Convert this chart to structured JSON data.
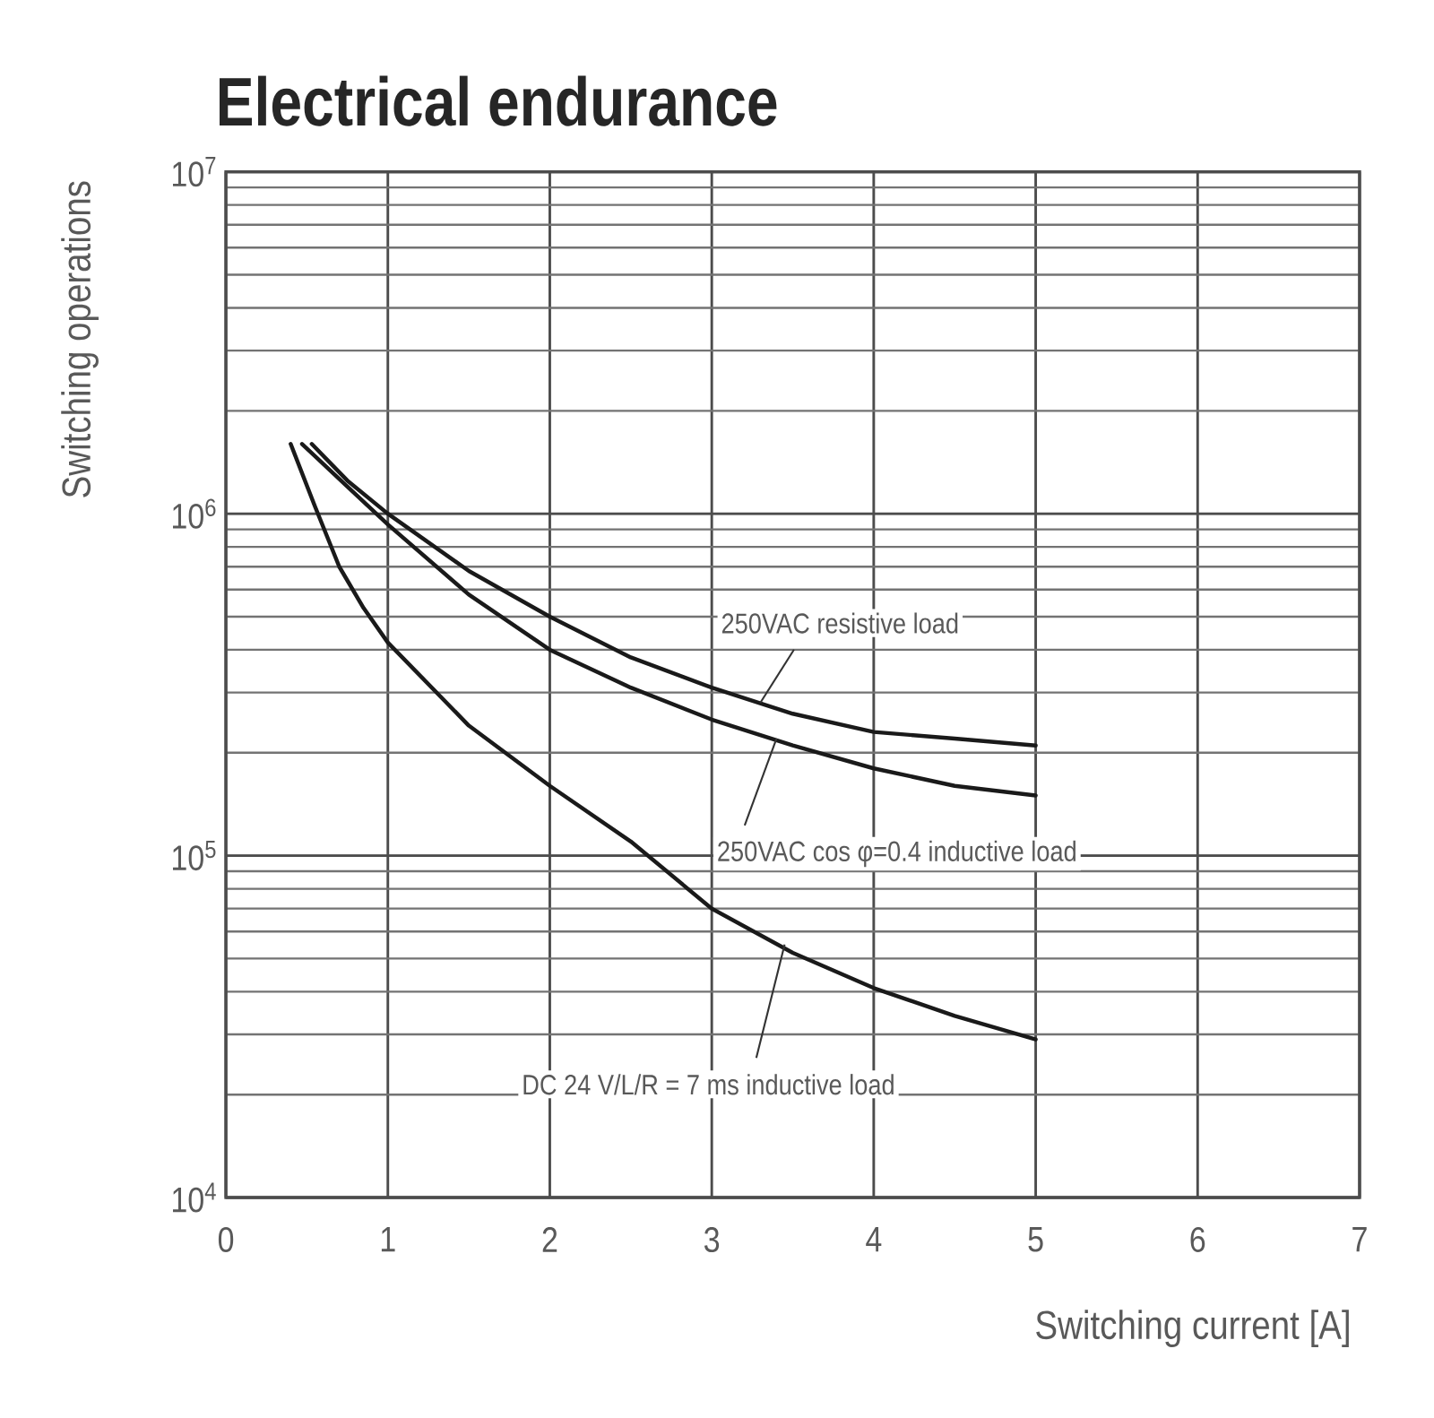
{
  "chart_data": {
    "type": "line",
    "title": "Electrical endurance",
    "xlabel": "Switching current [A]",
    "ylabel": "Switching operations",
    "log": "y",
    "grid": true,
    "line_style": "solid",
    "xlim": [
      0,
      7
    ],
    "ylim": [
      10000,
      10000000
    ],
    "xticks": [
      0,
      1,
      2,
      3,
      4,
      5,
      6,
      7
    ],
    "yticks": [
      {
        "value": 10000,
        "label": "10$^{4}$"
      },
      {
        "value": 100000,
        "label": "10$^{5}$"
      },
      {
        "value": 1000000,
        "label": "10$^{6}$"
      },
      {
        "value": 10000000,
        "label": "10$^{7}$"
      }
    ],
    "series": [
      {
        "color": "#1a1a1a",
        "x": [
          0.53,
          0.75,
          1,
          1.5,
          2,
          2.5,
          3,
          3.5,
          4,
          4.5,
          5
        ],
        "values": [
          1600000,
          1250000,
          1000000,
          680000,
          500000,
          380000,
          310000,
          260000,
          230000,
          220000,
          210000
        ]
      },
      {
        "color": "#1a1a1a",
        "x": [
          0.47,
          0.75,
          1,
          1.5,
          2,
          2.5,
          3,
          3.5,
          4,
          4.5,
          5
        ],
        "values": [
          1600000,
          1200000,
          930000,
          580000,
          400000,
          310000,
          250000,
          210000,
          180000,
          160000,
          150000
        ]
      },
      {
        "color": "#1a1a1a",
        "x": [
          0.4,
          0.55,
          0.7,
          0.85,
          1,
          1.5,
          2,
          2.5,
          3,
          3.5,
          4,
          4.5,
          5
        ],
        "values": [
          1600000,
          1050000,
          700000,
          530000,
          420000,
          240000,
          160000,
          110000,
          70000,
          52000,
          41000,
          34000,
          29000
        ]
      }
    ],
    "annotations": [
      {
        "text": "250VAC resistive load",
        "x": 3.3,
        "y": 280000
      },
      {
        "text": "250VAC cos φ=0.4 inductive load",
        "x": 3.4,
        "y": 220000
      },
      {
        "text": "DC 24 V/L/R = 7 ms inductive load",
        "x": 3.45,
        "y": 55000
      }
    ]
  }
}
